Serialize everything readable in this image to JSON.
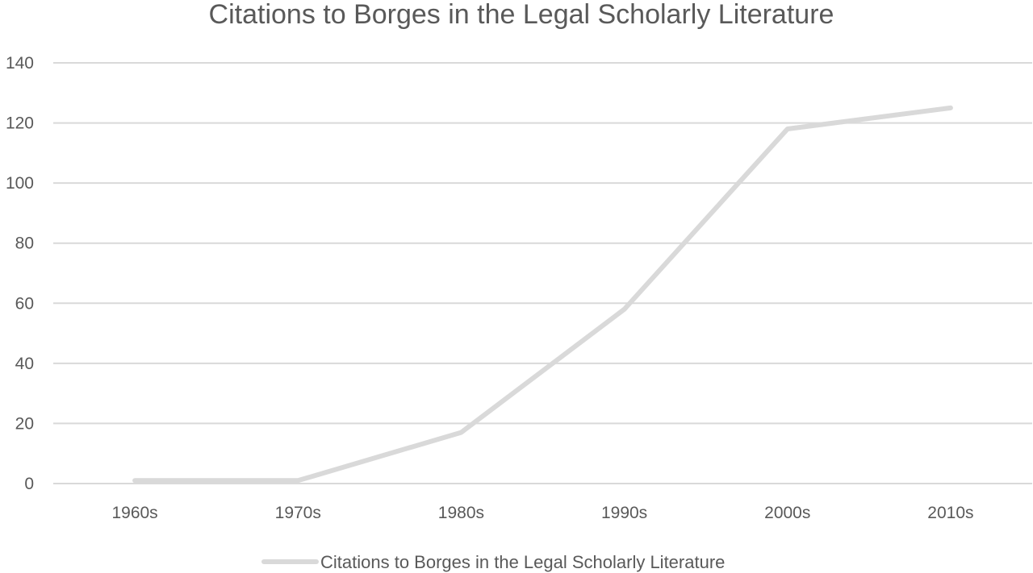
{
  "chart_data": {
    "type": "line",
    "title": "Citations to Borges in the Legal Scholarly Literature",
    "xlabel": "",
    "ylabel": "",
    "categories": [
      "1960s",
      "1970s",
      "1980s",
      "1990s",
      "2000s",
      "2010s"
    ],
    "series": [
      {
        "name": "Citations to Borges in the Legal Scholarly Literature",
        "values": [
          1,
          1,
          17,
          58,
          118,
          125
        ],
        "color": "#d9d9d9"
      }
    ],
    "ylim": [
      0,
      140
    ],
    "yticks": [
      0,
      20,
      40,
      60,
      80,
      100,
      120,
      140
    ],
    "grid": true,
    "legend_position": "bottom"
  }
}
